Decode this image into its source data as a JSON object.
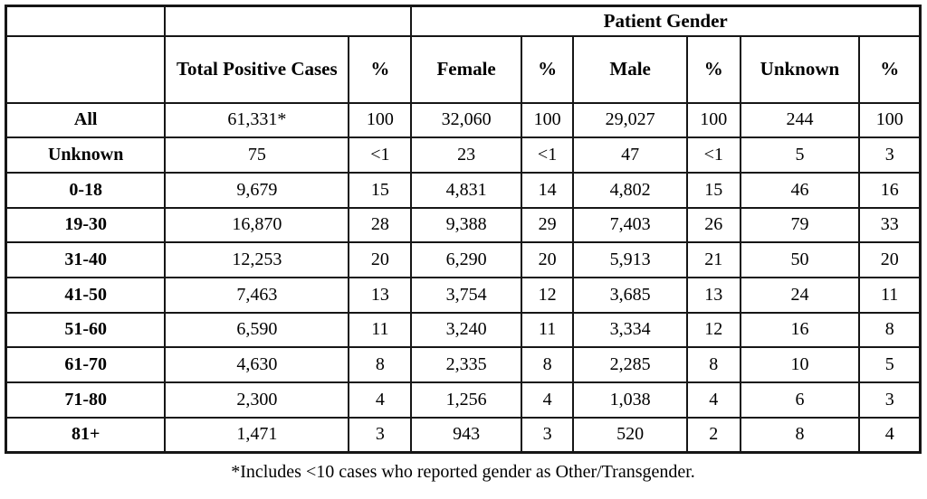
{
  "table": {
    "header": {
      "group_label": "Patient Gender",
      "columns": [
        "",
        "Total Positive Cases",
        "%",
        "Female",
        "%",
        "Male",
        "%",
        "Unknown",
        "%"
      ]
    },
    "rows": [
      {
        "label": "All",
        "values": [
          "61,331*",
          "100",
          "32,060",
          "100",
          "29,027",
          "100",
          "244",
          "100"
        ]
      },
      {
        "label": "Unknown",
        "values": [
          "75",
          "<1",
          "23",
          "<1",
          "47",
          "<1",
          "5",
          "3"
        ]
      },
      {
        "label": "0-18",
        "values": [
          "9,679",
          "15",
          "4,831",
          "14",
          "4,802",
          "15",
          "46",
          "16"
        ]
      },
      {
        "label": "19-30",
        "values": [
          "16,870",
          "28",
          "9,388",
          "29",
          "7,403",
          "26",
          "79",
          "33"
        ]
      },
      {
        "label": "31-40",
        "values": [
          "12,253",
          "20",
          "6,290",
          "20",
          "5,913",
          "21",
          "50",
          "20"
        ]
      },
      {
        "label": "41-50",
        "values": [
          "7,463",
          "13",
          "3,754",
          "12",
          "3,685",
          "13",
          "24",
          "11"
        ]
      },
      {
        "label": "51-60",
        "values": [
          "6,590",
          "11",
          "3,240",
          "11",
          "3,334",
          "12",
          "16",
          "8"
        ]
      },
      {
        "label": "61-70",
        "values": [
          "4,630",
          "8",
          "2,335",
          "8",
          "2,285",
          "8",
          "10",
          "5"
        ]
      },
      {
        "label": "71-80",
        "values": [
          "2,300",
          "4",
          "1,256",
          "4",
          "1,038",
          "4",
          "6",
          "3"
        ]
      },
      {
        "label": "81+",
        "values": [
          "1,471",
          "3",
          "943",
          "3",
          "520",
          "2",
          "8",
          "4"
        ]
      }
    ],
    "footnote": "*Includes <10 cases who reported gender as Other/Transgender."
  },
  "chart_data": {
    "type": "table",
    "title": "Patient Gender",
    "categories": [
      "All",
      "Unknown",
      "0-18",
      "19-30",
      "31-40",
      "41-50",
      "51-60",
      "61-70",
      "71-80",
      "81+"
    ],
    "series": [
      {
        "name": "Total Positive Cases",
        "values": [
          61331,
          75,
          9679,
          16870,
          12253,
          7463,
          6590,
          4630,
          2300,
          1471
        ]
      },
      {
        "name": "Total %",
        "values": [
          100,
          "<1",
          15,
          28,
          20,
          13,
          11,
          8,
          4,
          3
        ]
      },
      {
        "name": "Female",
        "values": [
          32060,
          23,
          4831,
          9388,
          6290,
          3754,
          3240,
          2335,
          1256,
          943
        ]
      },
      {
        "name": "Female %",
        "values": [
          100,
          "<1",
          14,
          29,
          20,
          12,
          11,
          8,
          4,
          3
        ]
      },
      {
        "name": "Male",
        "values": [
          29027,
          47,
          4802,
          7403,
          5913,
          3685,
          3334,
          2285,
          1038,
          520
        ]
      },
      {
        "name": "Male %",
        "values": [
          100,
          "<1",
          15,
          26,
          21,
          13,
          12,
          8,
          4,
          2
        ]
      },
      {
        "name": "Unknown",
        "values": [
          244,
          5,
          46,
          79,
          50,
          24,
          16,
          10,
          6,
          8
        ]
      },
      {
        "name": "Unknown %",
        "values": [
          100,
          3,
          16,
          33,
          20,
          11,
          8,
          5,
          3,
          4
        ]
      }
    ]
  }
}
